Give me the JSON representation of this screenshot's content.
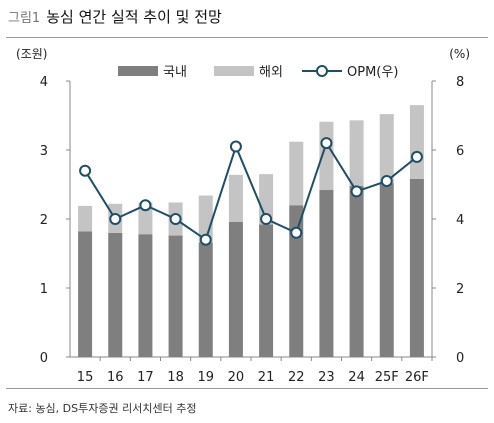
{
  "figure": {
    "label": "그림1",
    "title": "농심 연간 실적 추이 및 전망",
    "source": "자료: 농심, DS투자증권 리서치센터 추정"
  },
  "colors": {
    "domestic": "#7f7f7f",
    "overseas": "#c4c4c4",
    "opm_line": "#1f4e66",
    "opm_marker_fill": "#ffffff"
  },
  "chart_data": {
    "type": "bar",
    "stacked": true,
    "categories": [
      "15",
      "16",
      "17",
      "18",
      "19",
      "20",
      "21",
      "22",
      "23",
      "24",
      "25F",
      "26F"
    ],
    "series": [
      {
        "name": "국내",
        "type": "bar",
        "axis": "left",
        "values": [
          1.82,
          1.8,
          1.78,
          1.76,
          1.66,
          1.96,
          1.92,
          2.2,
          2.42,
          2.48,
          2.52,
          2.58
        ]
      },
      {
        "name": "해외",
        "type": "bar",
        "axis": "left",
        "values": [
          0.37,
          0.42,
          0.46,
          0.48,
          0.68,
          0.68,
          0.73,
          0.92,
          0.99,
          0.95,
          1.0,
          1.07
        ]
      },
      {
        "name": "OPM(우)",
        "type": "line",
        "axis": "right",
        "values": [
          5.4,
          4.0,
          4.4,
          4.0,
          3.4,
          6.1,
          4.0,
          3.6,
          6.2,
          4.8,
          5.1,
          5.8
        ]
      }
    ],
    "left_axis": {
      "unit": "(조원)",
      "ylim": [
        0,
        4
      ],
      "ticks": [
        "0",
        "1",
        "2",
        "3",
        "4"
      ]
    },
    "right_axis": {
      "unit": "(%)",
      "ylim": [
        0,
        8
      ],
      "ticks": [
        "0",
        "2",
        "4",
        "6",
        "8"
      ]
    },
    "legend_position": "top",
    "grid": false
  }
}
